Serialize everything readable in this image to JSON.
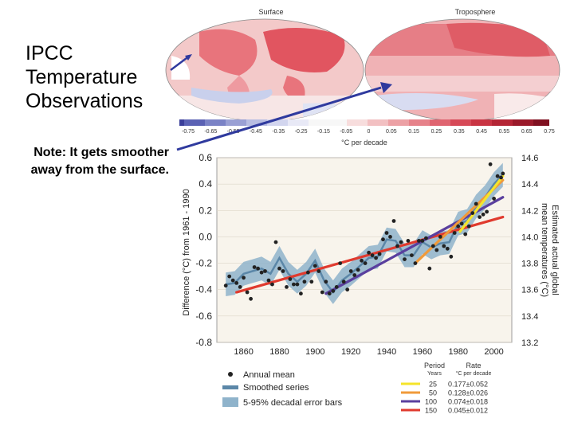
{
  "slide": {
    "title_lines": [
      "IPCC",
      "Temperature",
      "Observations"
    ],
    "note_lines": [
      "Note: It gets smoother",
      "away from the surface."
    ]
  },
  "maps": {
    "surface_title": "Surface",
    "troposphere_title": "Troposphere",
    "colorbar_ticks": [
      "-0.75",
      "-0.65",
      "-0.55",
      "-0.45",
      "-0.35",
      "-0.25",
      "-0.15",
      "-0.05",
      "0",
      "0.05",
      "0.15",
      "0.25",
      "0.35",
      "0.45",
      "0.55",
      "0.65",
      "0.75"
    ],
    "colorbar_label": "°C per decade"
  },
  "chart_data": {
    "type": "line",
    "title": "",
    "xlabel": "",
    "ylabel": "Difference (°C) from 1961 - 1990",
    "y2label": "Estimated actual global mean temperatures (°C)",
    "ylabel_right_lines": [
      "Estimated actual global",
      "mean temperatures (°C)"
    ],
    "xlim": [
      1845,
      2010
    ],
    "ylim": [
      -0.8,
      0.6
    ],
    "y2lim": [
      13.2,
      14.6
    ],
    "x_ticks": [
      "1860",
      "1880",
      "1900",
      "1920",
      "1940",
      "1960",
      "1980",
      "2000"
    ],
    "y_ticks": [
      "0.6",
      "0.4",
      "0.2",
      "0.0",
      "-0.2",
      "-0.4",
      "-0.6",
      "-0.8"
    ],
    "y2_ticks": [
      "14.6",
      "14.4",
      "14.2",
      "14.0",
      "13.8",
      "13.6",
      "13.4",
      "13.2"
    ],
    "smoothed_series": {
      "name": "Smoothed series",
      "x": [
        1850,
        1855,
        1860,
        1865,
        1870,
        1875,
        1880,
        1885,
        1890,
        1895,
        1900,
        1905,
        1910,
        1915,
        1920,
        1925,
        1930,
        1935,
        1940,
        1945,
        1950,
        1955,
        1960,
        1965,
        1970,
        1975,
        1980,
        1985,
        1990,
        1995,
        2000,
        2005
      ],
      "y": [
        -0.36,
        -0.35,
        -0.28,
        -0.26,
        -0.24,
        -0.28,
        -0.16,
        -0.28,
        -0.34,
        -0.28,
        -0.18,
        -0.33,
        -0.42,
        -0.33,
        -0.28,
        -0.22,
        -0.16,
        -0.15,
        -0.02,
        -0.03,
        -0.14,
        -0.14,
        -0.04,
        -0.08,
        -0.05,
        -0.04,
        0.1,
        0.12,
        0.23,
        0.3,
        0.4,
        0.47
      ],
      "error_band": 0.09
    },
    "annual_mean": {
      "name": "Annual mean",
      "x": [
        1850,
        1852,
        1854,
        1856,
        1858,
        1860,
        1862,
        1864,
        1866,
        1868,
        1870,
        1872,
        1874,
        1876,
        1878,
        1880,
        1882,
        1884,
        1886,
        1888,
        1890,
        1892,
        1894,
        1896,
        1898,
        1900,
        1902,
        1904,
        1906,
        1908,
        1910,
        1912,
        1914,
        1916,
        1918,
        1920,
        1922,
        1924,
        1926,
        1928,
        1930,
        1932,
        1934,
        1936,
        1938,
        1940,
        1942,
        1944,
        1946,
        1948,
        1950,
        1952,
        1954,
        1956,
        1958,
        1960,
        1962,
        1964,
        1966,
        1968,
        1970,
        1972,
        1974,
        1976,
        1978,
        1980,
        1982,
        1984,
        1986,
        1988,
        1990,
        1992,
        1994,
        1996,
        1998,
        2000,
        2002,
        2004,
        2005
      ],
      "y": [
        -0.37,
        -0.3,
        -0.33,
        -0.35,
        -0.38,
        -0.31,
        -0.42,
        -0.47,
        -0.23,
        -0.24,
        -0.27,
        -0.26,
        -0.33,
        -0.36,
        -0.04,
        -0.24,
        -0.26,
        -0.38,
        -0.32,
        -0.36,
        -0.36,
        -0.43,
        -0.34,
        -0.27,
        -0.34,
        -0.22,
        -0.26,
        -0.42,
        -0.34,
        -0.43,
        -0.41,
        -0.38,
        -0.2,
        -0.34,
        -0.4,
        -0.26,
        -0.29,
        -0.25,
        -0.18,
        -0.2,
        -0.12,
        -0.14,
        -0.16,
        -0.13,
        -0.02,
        0.03,
        0.0,
        0.12,
        -0.07,
        -0.04,
        -0.17,
        -0.03,
        -0.14,
        -0.2,
        -0.03,
        -0.03,
        -0.01,
        -0.24,
        -0.07,
        -0.1,
        0.0,
        -0.07,
        -0.09,
        -0.15,
        0.03,
        0.08,
        0.1,
        0.02,
        0.08,
        0.18,
        0.25,
        0.15,
        0.17,
        0.19,
        0.55,
        0.29,
        0.46,
        0.45,
        0.48
      ]
    },
    "trend_lines": [
      {
        "name": "25",
        "rate": "0.177±0.052",
        "color": "#f5e42a",
        "x": [
          1981,
          2005
        ],
        "y": [
          0.04,
          0.46
        ]
      },
      {
        "name": "50",
        "rate": "0.128±0.026",
        "color": "#f09a3a",
        "x": [
          1956,
          2005
        ],
        "y": [
          -0.2,
          0.43
        ]
      },
      {
        "name": "100",
        "rate": "0.074±0.018",
        "color": "#5a3f9e",
        "x": [
          1906,
          2005
        ],
        "y": [
          -0.43,
          0.3
        ]
      },
      {
        "name": "150",
        "rate": "0.045±0.012",
        "color": "#e03a2e",
        "x": [
          1856,
          2005
        ],
        "y": [
          -0.42,
          0.15
        ]
      }
    ],
    "legend_left": [
      "Annual mean",
      "Smoothed series",
      "5-95% decadal error bars"
    ],
    "legend_right_header": {
      "period": "Period",
      "period_unit": "Years",
      "rate": "Rate",
      "rate_unit": "°C per decade"
    },
    "colors": {
      "annual": "#222222",
      "smoothed": "#5b87a8",
      "band": "#8fb3cb",
      "plot_bg": "#f8f4ec"
    }
  }
}
